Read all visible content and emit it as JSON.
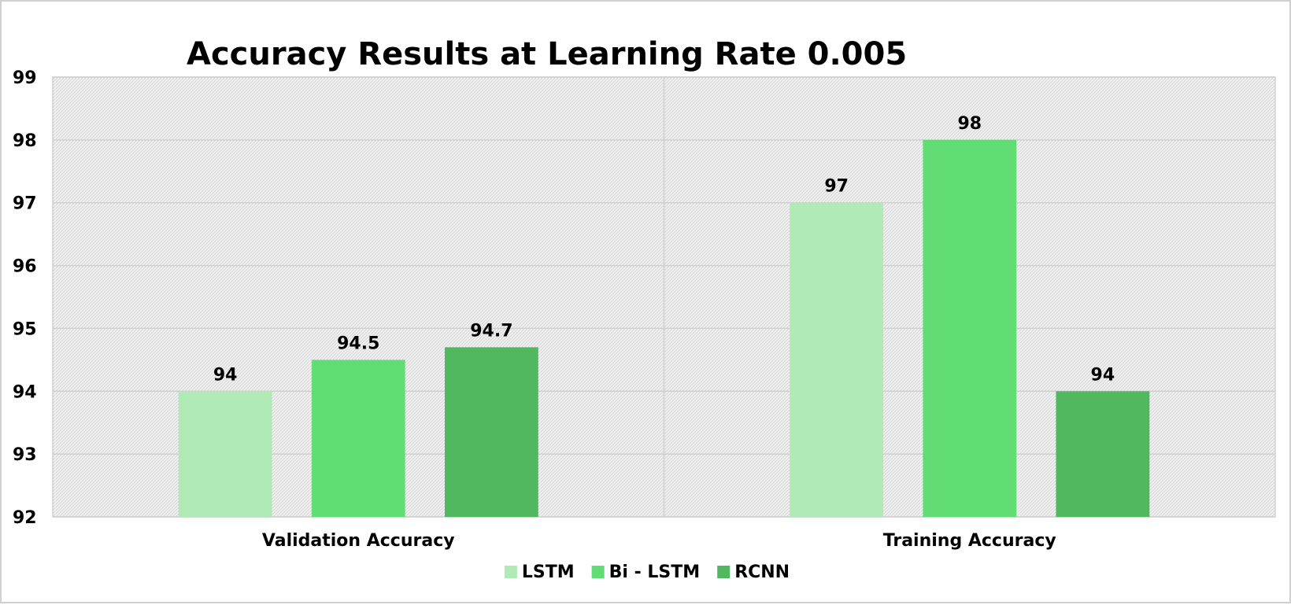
{
  "chart_data": {
    "type": "bar",
    "title": "Accuracy Results at Learning Rate 0.005",
    "xlabel": "",
    "ylabel": "",
    "categories": [
      "Validation Accuracy",
      "Training Accuracy"
    ],
    "series": [
      {
        "name": "LSTM",
        "values": [
          94,
          97
        ],
        "color": "#b0eab4"
      },
      {
        "name": "Bi - LSTM",
        "values": [
          94.5,
          98
        ],
        "color": "#62dd76"
      },
      {
        "name": "RCNN",
        "values": [
          94.7,
          94
        ],
        "color": "#52b85f"
      }
    ],
    "ylim": [
      92,
      99
    ],
    "yticks": [
      "92",
      "93",
      "94",
      "95",
      "96",
      "97",
      "98",
      "99"
    ],
    "data_labels": [
      [
        "94",
        "97"
      ],
      [
        "94.5",
        "98"
      ],
      [
        "94.7",
        "94"
      ]
    ],
    "grid": true,
    "plot_background": "hatched-gray",
    "legend_position": "bottom"
  }
}
